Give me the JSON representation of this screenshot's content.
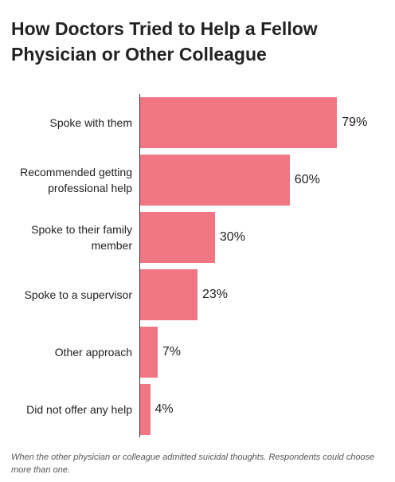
{
  "chart_data": {
    "type": "bar",
    "orientation": "horizontal",
    "title": "How Doctors Tried to Help a Fellow Physician or Other Colleague",
    "categories": [
      "Spoke with them",
      "Recommended getting professional help",
      "Spoke to their family member",
      "Spoke to a supervisor",
      "Other approach",
      "Did not offer any help"
    ],
    "values": [
      79,
      60,
      30,
      23,
      7,
      4
    ],
    "value_labels": [
      "79%",
      "60%",
      "30%",
      "23%",
      "7%",
      "4%"
    ],
    "color": "#f07683",
    "note": "When the other physician or colleague admitted suicidal thoughts. Respondents could choose more than one."
  }
}
